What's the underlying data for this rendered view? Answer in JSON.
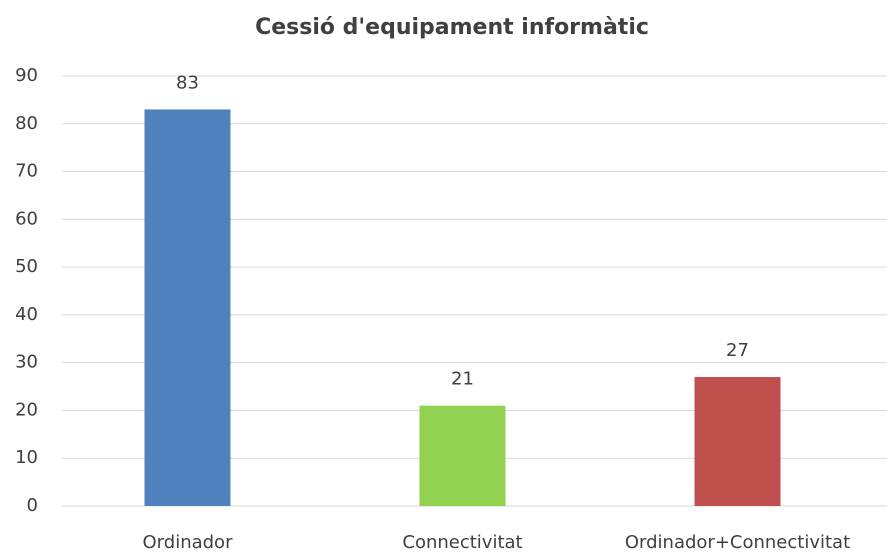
{
  "chart_data": {
    "type": "bar",
    "title": "Cessió d'equipament informàtic",
    "categories": [
      "Ordinador",
      "Connectivitat",
      "Ordinador+Connectivitat"
    ],
    "values": [
      83,
      21,
      27
    ],
    "colors": [
      "#4f81bd",
      "#92d050",
      "#c0504d"
    ],
    "ylim": [
      0,
      90
    ],
    "yticks": [
      0,
      10,
      20,
      30,
      40,
      50,
      60,
      70,
      80,
      90
    ],
    "grid": true
  }
}
